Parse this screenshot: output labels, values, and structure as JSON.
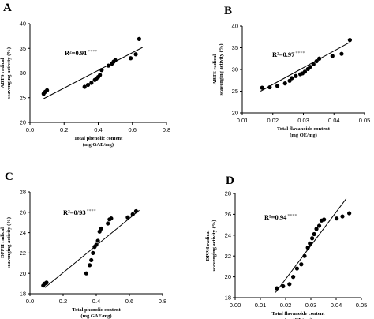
{
  "chart_data": [
    {
      "panel": "A",
      "type": "scatter",
      "r2_label": "R²=0.91",
      "r2_significance": "****",
      "xlabel": "Total phenolic content",
      "xlabel_unit": "(mg GAE/mg)",
      "ylabel": "ABTS radical",
      "ylabel_2": "scavenging activity (%)",
      "xlim": [
        0.0,
        0.8
      ],
      "ylim": [
        20,
        40
      ],
      "xticks": [
        "0.0",
        "0.2",
        "0.4",
        "0.6",
        "0.8"
      ],
      "yticks": [
        "20",
        "25",
        "30",
        "35",
        "40"
      ],
      "x": [
        0.08,
        0.09,
        0.1,
        0.32,
        0.34,
        0.36,
        0.38,
        0.39,
        0.4,
        0.41,
        0.42,
        0.46,
        0.48,
        0.49,
        0.5,
        0.59,
        0.62,
        0.64
      ],
      "y": [
        25.8,
        26.2,
        26.5,
        27.2,
        27.6,
        28.0,
        28.6,
        28.9,
        29.2,
        29.6,
        30.6,
        31.5,
        31.9,
        32.3,
        32.6,
        33.0,
        33.8,
        36.9
      ],
      "fit_line": {
        "x": [
          0.08,
          0.66
        ],
        "y": [
          24.8,
          35.2
        ]
      },
      "grid": false
    },
    {
      "panel": "B",
      "type": "scatter",
      "r2_label": "R²=0.97",
      "r2_significance": "****",
      "xlabel": "Total flavanoide content",
      "xlabel_unit": "(mg QE/mg)",
      "ylabel": "ABTS radical",
      "ylabel_2": "scavenging activity (%)",
      "xlim": [
        0.01,
        0.05
      ],
      "ylim": [
        20,
        40
      ],
      "xticks": [
        "0.01",
        "0.02",
        "0.03",
        "0.04",
        "0.05"
      ],
      "yticks": [
        "20",
        "25",
        "30",
        "35",
        "40"
      ],
      "x": [
        0.0165,
        0.019,
        0.0215,
        0.024,
        0.0255,
        0.0262,
        0.0275,
        0.029,
        0.0297,
        0.0305,
        0.0315,
        0.0322,
        0.0333,
        0.0343,
        0.0352,
        0.0395,
        0.0425,
        0.0452
      ],
      "y": [
        25.8,
        25.9,
        26.2,
        26.8,
        27.4,
        28.0,
        28.5,
        28.9,
        29.1,
        29.5,
        30.1,
        30.6,
        31.2,
        31.9,
        32.5,
        33.1,
        33.6,
        36.8
      ],
      "fit_line": {
        "x": [
          0.016,
          0.045
        ],
        "y": [
          25.0,
          36.2
        ]
      },
      "grid": false
    },
    {
      "panel": "C",
      "type": "scatter",
      "r2_label": "R²=0/93",
      "r2_significance": "****",
      "xlabel": "Total phenolic content",
      "xlabel_unit": "(mg GAE/mg)",
      "ylabel": "DPPH radical",
      "ylabel_2": "scavenging activity (%)",
      "xlim": [
        0.0,
        0.8
      ],
      "ylim": [
        18,
        28
      ],
      "xticks": [
        "0.0",
        "0.2",
        "0.4",
        "0.6",
        "0.8"
      ],
      "yticks": [
        "18",
        "20",
        "22",
        "24",
        "26",
        "28"
      ],
      "x": [
        0.08,
        0.09,
        0.1,
        0.34,
        0.36,
        0.37,
        0.38,
        0.39,
        0.4,
        0.41,
        0.42,
        0.43,
        0.47,
        0.48,
        0.49,
        0.59,
        0.62,
        0.64
      ],
      "y": [
        18.8,
        19.0,
        19.1,
        20.0,
        20.8,
        21.3,
        22.0,
        22.6,
        22.8,
        23.2,
        24.1,
        24.4,
        24.9,
        25.3,
        25.4,
        25.5,
        25.8,
        26.1
      ],
      "fit_line": {
        "x": [
          0.09,
          0.66
        ],
        "y": [
          18.6,
          26.2
        ]
      },
      "grid": false
    },
    {
      "panel": "D",
      "type": "scatter",
      "r2_label": "R²=0.94",
      "r2_significance": "****",
      "xlabel": "Total flavanoide content",
      "xlabel_unit": "(mg QE/mg)",
      "ylabel": "DPPH radical",
      "ylabel_2": "scavenging activity (%)",
      "xlim": [
        0.0,
        0.05
      ],
      "ylim": [
        18,
        28
      ],
      "xticks": [
        "0.00",
        "0.01",
        "0.02",
        "0.03",
        "0.04",
        "0.05"
      ],
      "yticks": [
        "18",
        "20",
        "22",
        "24",
        "26",
        "28"
      ],
      "x": [
        0.0165,
        0.019,
        0.0215,
        0.023,
        0.0245,
        0.0262,
        0.0275,
        0.0288,
        0.0296,
        0.0305,
        0.0313,
        0.0322,
        0.0333,
        0.0342,
        0.0352,
        0.0402,
        0.0425,
        0.0452
      ],
      "y": [
        18.9,
        19.1,
        19.3,
        20.0,
        20.8,
        21.2,
        22.0,
        22.8,
        23.2,
        23.7,
        24.1,
        24.6,
        24.9,
        25.4,
        25.5,
        25.6,
        25.8,
        26.1
      ],
      "fit_line": {
        "x": [
          0.016,
          0.044
        ],
        "y": [
          18.5,
          27.5
        ]
      },
      "grid": false
    }
  ]
}
